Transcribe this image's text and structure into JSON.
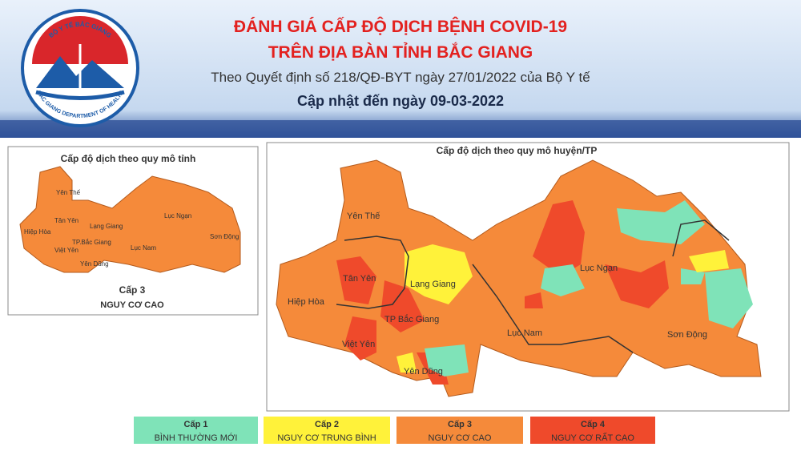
{
  "header": {
    "logo_top": "BỘ Y TẾ BẮC GIANG",
    "logo_bottom": "BAC GIANG DEPARTMENT OF HEALTH",
    "title_line1": "ĐÁNH GIÁ CẤP ĐỘ DỊCH BỆNH COVID-19",
    "title_line2": "TRÊN ĐỊA BÀN TỈNH BẮC GIANG",
    "subtitle": "Theo Quyết định số 218/QĐ-BYT ngày 27/01/2022 của Bộ Y tế",
    "updated": "Cập nhật đến ngày 09-03-2022"
  },
  "province_map": {
    "title": "Cấp độ dịch theo quy mô tỉnh",
    "labels": [
      "Yên Thế",
      "Tân Yên",
      "Lạng Giang",
      "Hiệp Hòa",
      "TP.Bắc Giang",
      "Việt Yên",
      "Yên Dũng",
      "Lục Nam",
      "Lục Ngạn",
      "Sơn Động"
    ],
    "level": "Cấp 3",
    "level_name": "NGUY CƠ CAO"
  },
  "district_map": {
    "title": "Cấp độ dịch theo quy mô huyện/TP",
    "labels": [
      "Yên Thế",
      "Tân Yên",
      "Lạng Giang",
      "Hiệp Hòa",
      "TP Bắc Giang",
      "Việt Yên",
      "Yên Dũng",
      "Lục Nam",
      "Lục Ngạn",
      "Sơn Động"
    ]
  },
  "legend": [
    {
      "level": "Cấp 1",
      "name": "BÌNH THƯỜNG MỚI",
      "color": "#7fe3b8"
    },
    {
      "level": "Cấp 2",
      "name": "NGUY CƠ TRUNG BÌNH",
      "color": "#fff23a"
    },
    {
      "level": "Cấp 3",
      "name": "NGUY CƠ CAO",
      "color": "#f58a3a"
    },
    {
      "level": "Cấp 4",
      "name": "NGUY CƠ RẤT CAO",
      "color": "#ef4a2b"
    }
  ]
}
